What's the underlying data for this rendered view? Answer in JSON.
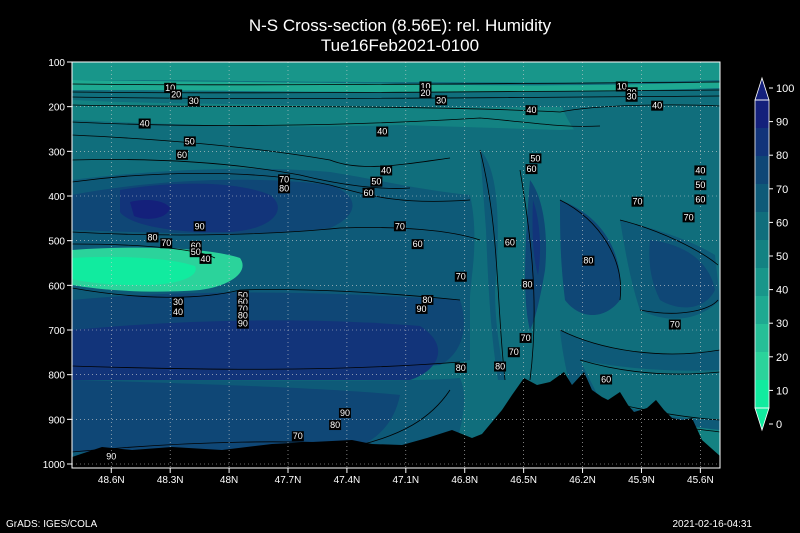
{
  "chart_data": {
    "type": "contour",
    "title": "N-S Cross-section (8.56E): rel. Humidity",
    "subtitle": "Tue16Feb2021-0100",
    "x_ticks": [
      "48.6N",
      "48.3N",
      "48N",
      "47.7N",
      "47.4N",
      "47.1N",
      "46.8N",
      "46.5N",
      "46.2N",
      "45.9N",
      "45.6N"
    ],
    "x_tick_lat": [
      48.6,
      48.3,
      48.0,
      47.7,
      47.4,
      47.1,
      46.8,
      46.5,
      46.2,
      45.9,
      45.6
    ],
    "xlim": [
      48.8,
      45.5
    ],
    "y_ticks": [
      "100",
      "200",
      "300",
      "400",
      "500",
      "600",
      "700",
      "800",
      "900",
      "1000"
    ],
    "y_tick_values": [
      100,
      200,
      300,
      400,
      500,
      600,
      700,
      800,
      900,
      1000
    ],
    "ylim": [
      100,
      1000
    ],
    "grid": true,
    "colorbar": {
      "labels": [
        "0",
        "10",
        "20",
        "30",
        "40",
        "50",
        "60",
        "70",
        "80",
        "90",
        "100"
      ],
      "colors": [
        "#11eb9f",
        "#2bd39b",
        "#26bf97",
        "#1ea991",
        "#18968a",
        "#138282",
        "#106e7c",
        "#0e5a78",
        "#0f4776",
        "#12347a",
        "#14207b"
      ]
    },
    "contour_labels": [
      {
        "t": "10",
        "lat": 48.3,
        "p": 160
      },
      {
        "t": "20",
        "lat": 48.27,
        "p": 175
      },
      {
        "t": "30",
        "lat": 48.18,
        "p": 190
      },
      {
        "t": "10",
        "lat": 47.0,
        "p": 157
      },
      {
        "t": "20",
        "lat": 47.0,
        "p": 172
      },
      {
        "t": "30",
        "lat": 46.92,
        "p": 188
      },
      {
        "t": "10",
        "lat": 46.0,
        "p": 157
      },
      {
        "t": "20",
        "lat": 45.95,
        "p": 170
      },
      {
        "t": "30",
        "lat": 45.95,
        "p": 180
      },
      {
        "t": "40",
        "lat": 48.43,
        "p": 240
      },
      {
        "t": "40",
        "lat": 47.22,
        "p": 258
      },
      {
        "t": "40",
        "lat": 46.46,
        "p": 210
      },
      {
        "t": "40",
        "lat": 45.82,
        "p": 200
      },
      {
        "t": "50",
        "lat": 48.2,
        "p": 280
      },
      {
        "t": "60",
        "lat": 48.24,
        "p": 310
      },
      {
        "t": "50",
        "lat": 46.44,
        "p": 318
      },
      {
        "t": "60",
        "lat": 46.46,
        "p": 342
      },
      {
        "t": "40",
        "lat": 47.2,
        "p": 345
      },
      {
        "t": "50",
        "lat": 47.25,
        "p": 370
      },
      {
        "t": "60",
        "lat": 47.29,
        "p": 395
      },
      {
        "t": "70",
        "lat": 47.72,
        "p": 365
      },
      {
        "t": "80",
        "lat": 47.72,
        "p": 385
      },
      {
        "t": "40",
        "lat": 45.6,
        "p": 345
      },
      {
        "t": "50",
        "lat": 45.6,
        "p": 378
      },
      {
        "t": "60",
        "lat": 45.6,
        "p": 410
      },
      {
        "t": "70",
        "lat": 45.92,
        "p": 415
      },
      {
        "t": "70",
        "lat": 45.66,
        "p": 450
      },
      {
        "t": "90",
        "lat": 48.15,
        "p": 470
      },
      {
        "t": "70",
        "lat": 47.13,
        "p": 470
      },
      {
        "t": "80",
        "lat": 48.39,
        "p": 495
      },
      {
        "t": "70",
        "lat": 48.32,
        "p": 508
      },
      {
        "t": "60",
        "lat": 48.17,
        "p": 514
      },
      {
        "t": "50",
        "lat": 48.17,
        "p": 528
      },
      {
        "t": "40",
        "lat": 48.12,
        "p": 543
      },
      {
        "t": "60",
        "lat": 47.04,
        "p": 510
      },
      {
        "t": "60",
        "lat": 46.57,
        "p": 506
      },
      {
        "t": "70",
        "lat": 46.82,
        "p": 583
      },
      {
        "t": "80",
        "lat": 46.48,
        "p": 600
      },
      {
        "t": "80",
        "lat": 46.17,
        "p": 547
      },
      {
        "t": "50",
        "lat": 47.93,
        "p": 625
      },
      {
        "t": "60",
        "lat": 47.93,
        "p": 640
      },
      {
        "t": "70",
        "lat": 47.93,
        "p": 655
      },
      {
        "t": "80",
        "lat": 47.93,
        "p": 670
      },
      {
        "t": "90",
        "lat": 47.93,
        "p": 688
      },
      {
        "t": "30",
        "lat": 48.26,
        "p": 640
      },
      {
        "t": "40",
        "lat": 48.26,
        "p": 662
      },
      {
        "t": "80",
        "lat": 46.99,
        "p": 635
      },
      {
        "t": "90",
        "lat": 47.02,
        "p": 655
      },
      {
        "t": "70",
        "lat": 45.73,
        "p": 690
      },
      {
        "t": "70",
        "lat": 46.49,
        "p": 720
      },
      {
        "t": "70",
        "lat": 46.55,
        "p": 752
      },
      {
        "t": "80",
        "lat": 46.82,
        "p": 787
      },
      {
        "t": "80",
        "lat": 46.62,
        "p": 784
      },
      {
        "t": "60",
        "lat": 46.08,
        "p": 813
      },
      {
        "t": "90",
        "lat": 47.41,
        "p": 888
      },
      {
        "t": "80",
        "lat": 47.46,
        "p": 915
      },
      {
        "t": "70",
        "lat": 47.65,
        "p": 940
      },
      {
        "t": "90",
        "lat": 48.6,
        "p": 985
      }
    ]
  },
  "footer": {
    "left": "GrADS: IGES/COLA",
    "right": "2021-02-16-04:31"
  }
}
